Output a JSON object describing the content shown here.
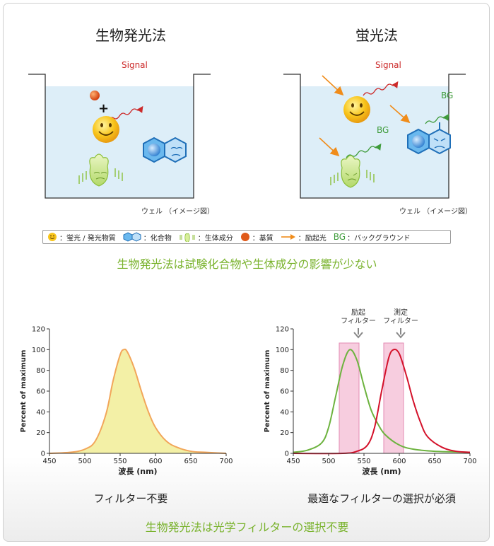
{
  "panels": {
    "bioluminescence_title": "生物発光法",
    "fluorescence_title": "蛍光法",
    "well_label_left": "ウェル （イメージ図）",
    "well_label_right": "ウェル （イメージ図）",
    "signal_left": "Signal",
    "signal_right": "Signal",
    "bg_1": "BG",
    "bg_2": "BG"
  },
  "legend": {
    "items": [
      {
        "icon": "smiley-icon",
        "label": "：蛍光 / 発光物質"
      },
      {
        "icon": "compound-icon",
        "label": "：化合物"
      },
      {
        "icon": "biomolecule-icon",
        "label": "：生体成分"
      },
      {
        "icon": "substrate-icon",
        "label": "：基質"
      },
      {
        "icon": "arrow-icon",
        "label": "：励起光"
      },
      {
        "icon": "bg-text",
        "symbol": "BG",
        "label": "：バックグラウンド"
      }
    ]
  },
  "headline_top": "生物発光法は試験化合物や生体成分の影響が少ない",
  "headline_bottom": "生物発光法は光学フィルターの選択不要",
  "captions": {
    "left": "フィルター不要",
    "right": "最適なフィルターの選択が必須"
  },
  "filter_labels": {
    "excitation": [
      "励起",
      "フィルター"
    ],
    "measurement": [
      "測定",
      "フィルター"
    ]
  },
  "colors": {
    "green_text": "#7ab32e",
    "orange_curve": "#f2a65a",
    "yellow_fill": "#f3f0a6",
    "green_curve": "#6db33f",
    "red_curve": "#d4122b",
    "pink_band": "#f4b8d2",
    "water": "#ddeef8"
  },
  "chart_data": [
    {
      "type": "area",
      "xlabel": "波長 (nm)",
      "ylabel": "Percent of maximum",
      "xlim": [
        450,
        700
      ],
      "ylim": [
        0,
        120
      ],
      "x_ticks": [
        450,
        500,
        550,
        600,
        650,
        700
      ],
      "y_ticks": [
        0,
        20,
        40,
        60,
        80,
        100,
        120
      ],
      "series": [
        {
          "x": [
            450,
            480,
            500,
            515,
            530,
            540,
            550,
            555,
            560,
            570,
            580,
            590,
            600,
            615,
            630,
            650,
            670,
            700
          ],
          "y": [
            0,
            1,
            4,
            12,
            38,
            70,
            95,
            100,
            98,
            82,
            60,
            40,
            25,
            12,
            6,
            2,
            1,
            0
          ]
        }
      ]
    },
    {
      "type": "line",
      "xlabel": "波長 (nm)",
      "ylabel": "Percent of maximum",
      "xlim": [
        450,
        700
      ],
      "ylim": [
        0,
        120
      ],
      "x_ticks": [
        450,
        500,
        550,
        600,
        650,
        700
      ],
      "y_ticks": [
        0,
        20,
        40,
        60,
        80,
        100,
        120
      ],
      "filter_bands": [
        [
          515,
          543
        ],
        [
          578,
          606
        ]
      ],
      "series": [
        {
          "x": [
            450,
            470,
            490,
            500,
            510,
            520,
            530,
            540,
            550,
            560,
            570,
            580,
            600,
            620,
            650,
            700
          ],
          "y": [
            1,
            3,
            10,
            25,
            55,
            85,
            100,
            90,
            65,
            42,
            28,
            18,
            8,
            4,
            2,
            1
          ]
        },
        {
          "x": [
            450,
            520,
            540,
            555,
            565,
            575,
            585,
            592,
            600,
            610,
            620,
            630,
            640,
            660,
            680,
            700
          ],
          "y": [
            0,
            0,
            2,
            8,
            25,
            60,
            92,
            100,
            96,
            75,
            50,
            30,
            16,
            6,
            2,
            1
          ]
        }
      ]
    }
  ]
}
